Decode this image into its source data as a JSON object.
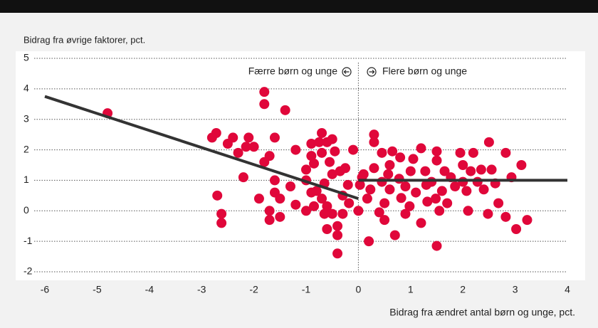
{
  "chart_data": {
    "type": "scatter",
    "ylabel": "Bidrag fra øvrige faktorer, pct.",
    "xlabel": "Bidrag fra ændret antal børn og unge, pct.",
    "annotations": [
      "Færre børn og unge",
      "Flere børn og unge"
    ],
    "xlim": [
      -6,
      4
    ],
    "xticks": [
      -6,
      -5,
      -4,
      -3,
      -2,
      -1,
      0,
      1,
      2,
      3,
      4
    ],
    "ylim": [
      -2,
      5
    ],
    "yticks": [
      -2,
      -1,
      0,
      1,
      2,
      3,
      4,
      5
    ],
    "grid": true,
    "series": [
      {
        "color": "#e0073a",
        "x": [
          -4.8,
          -2.72,
          -2.8,
          -2.7,
          -2.62,
          -2.62,
          -2.4,
          -2.5,
          -2.3,
          -2.1,
          -2.15,
          -2.0,
          -2.2,
          -1.9,
          -1.8,
          -1.8,
          -1.4,
          -1.6,
          -1.7,
          -1.8,
          -1.6,
          -1.6,
          -1.5,
          -1.7,
          -1.7,
          -1.5,
          -1.3,
          -1.2,
          -1.2,
          -0.9,
          -0.9,
          -0.85,
          -1.0,
          -1.0,
          -0.9,
          -0.85,
          -1.0,
          -0.75,
          -0.7,
          -0.7,
          -0.6,
          -0.5,
          -0.55,
          -0.5,
          -0.65,
          -0.8,
          -0.7,
          -0.6,
          -0.5,
          -0.65,
          -0.6,
          -0.4,
          -0.4,
          -0.4,
          -0.3,
          -0.3,
          -0.25,
          -0.35,
          -0.2,
          -0.1,
          -0.18,
          -0.45,
          0,
          0.1,
          0.03,
          0.17,
          0.23,
          0.3,
          0.3,
          0.3,
          0.2,
          0.4,
          0.45,
          0.45,
          0.5,
          0.5,
          0.6,
          0.6,
          0.65,
          0.7,
          0.78,
          0.8,
          0.9,
          0.9,
          1.0,
          1.05,
          1.1,
          1.2,
          1.2,
          1.28,
          1.32,
          1.4,
          1.5,
          1.5,
          1.5,
          1.55,
          1.6,
          1.65,
          1.7,
          1.85,
          1.95,
          2.0,
          2.0,
          2.07,
          2.1,
          2.2,
          2.15,
          2.35,
          2.4,
          2.5,
          2.55,
          2.48,
          2.62,
          2.68,
          2.82,
          2.82,
          2.93,
          3.02,
          3.12,
          3.23,
          0.07,
          0.57,
          0.82,
          1.3,
          1.77,
          2.28,
          1.48,
          0.98
        ],
        "values": [
          3.2,
          2.55,
          2.4,
          0.5,
          -0.1,
          -0.4,
          2.4,
          2.2,
          1.9,
          2.4,
          2.1,
          2.1,
          1.1,
          0.4,
          3.9,
          3.5,
          3.3,
          2.4,
          1.8,
          1.6,
          1.0,
          0.6,
          0.4,
          0,
          -0.3,
          -0.2,
          0.8,
          2.0,
          0.2,
          2.2,
          1.8,
          1.55,
          1.35,
          1.0,
          0.6,
          0.15,
          0,
          2.25,
          2.55,
          1.9,
          2.25,
          2.35,
          1.6,
          1.2,
          0.9,
          0.65,
          0.4,
          0.15,
          -0.1,
          -0.1,
          -0.6,
          -0.5,
          -0.8,
          -1.4,
          -0.1,
          0.5,
          1.4,
          1.3,
          0.85,
          2.0,
          0.25,
          1.95,
          0,
          1.2,
          0.85,
          0.4,
          0.7,
          2.5,
          2.25,
          1.4,
          -1.0,
          -0.05,
          0.95,
          1.9,
          0.25,
          -0.3,
          1.5,
          0.7,
          1.95,
          -0.8,
          1.05,
          1.75,
          -0.1,
          0.8,
          1.3,
          1.7,
          0.6,
          -0.4,
          2.05,
          1.3,
          0.3,
          0.95,
          1.65,
          1.95,
          -1.15,
          0.0,
          0.65,
          1.3,
          0.25,
          0.8,
          1.9,
          0.95,
          1.5,
          0.65,
          0.0,
          1.9,
          1.3,
          1.35,
          0.7,
          2.25,
          1.35,
          -0.1,
          0.9,
          0.25,
          1.9,
          -0.2,
          1.1,
          -0.6,
          1.5,
          -0.3,
          1.1,
          1.2,
          0.42,
          0.85,
          1.1,
          0.95,
          0.4,
          0.15
        ]
      }
    ],
    "lines": [
      {
        "color": "#333333",
        "x": [
          -6,
          0
        ],
        "values": [
          3.75,
          0.4
        ]
      },
      {
        "color": "#333333",
        "x": [
          0,
          4
        ],
        "values": [
          1,
          1
        ]
      }
    ]
  }
}
